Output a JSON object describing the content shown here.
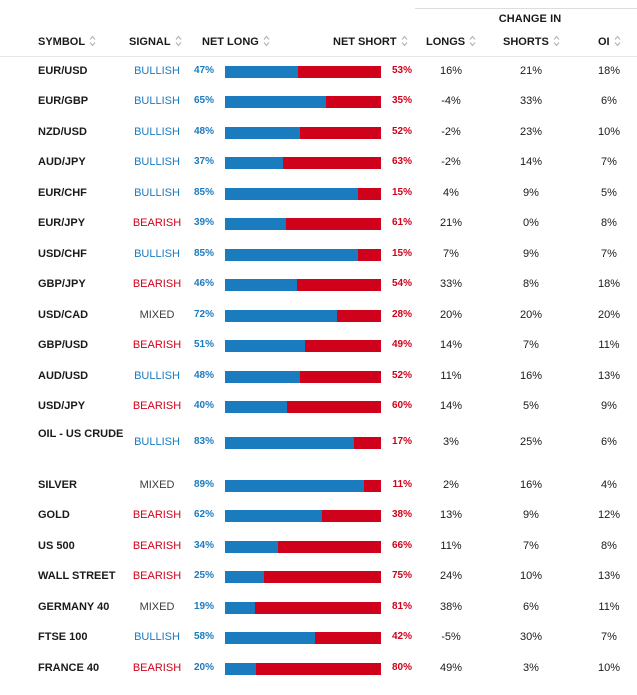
{
  "table": {
    "group_header": "CHANGE IN",
    "headers": {
      "symbol": "SYMBOL",
      "signal": "SIGNAL",
      "net_long": "NET LONG",
      "net_short": "NET SHORT",
      "longs": "LONGS",
      "shorts": "SHORTS",
      "oi": "OI"
    },
    "colors": {
      "long": "#1b7bbf",
      "short": "#d0021b",
      "bullish": "#1b7bbf",
      "bearish": "#d0021b",
      "mixed": "#3c3c3c"
    },
    "rows": [
      {
        "symbol": "EUR/USD",
        "signal": "BULLISH",
        "net_long": "47%",
        "net_short": "53%",
        "long_pct": 47,
        "longs": "16%",
        "shorts": "21%",
        "oi": "18%"
      },
      {
        "symbol": "EUR/GBP",
        "signal": "BULLISH",
        "net_long": "65%",
        "net_short": "35%",
        "long_pct": 65,
        "longs": "-4%",
        "shorts": "33%",
        "oi": "6%"
      },
      {
        "symbol": "NZD/USD",
        "signal": "BULLISH",
        "net_long": "48%",
        "net_short": "52%",
        "long_pct": 48,
        "longs": "-2%",
        "shorts": "23%",
        "oi": "10%"
      },
      {
        "symbol": "AUD/JPY",
        "signal": "BULLISH",
        "net_long": "37%",
        "net_short": "63%",
        "long_pct": 37,
        "longs": "-2%",
        "shorts": "14%",
        "oi": "7%"
      },
      {
        "symbol": "EUR/CHF",
        "signal": "BULLISH",
        "net_long": "85%",
        "net_short": "15%",
        "long_pct": 85,
        "longs": "4%",
        "shorts": "9%",
        "oi": "5%"
      },
      {
        "symbol": "EUR/JPY",
        "signal": "BEARISH",
        "net_long": "39%",
        "net_short": "61%",
        "long_pct": 39,
        "longs": "21%",
        "shorts": "0%",
        "oi": "8%"
      },
      {
        "symbol": "USD/CHF",
        "signal": "BULLISH",
        "net_long": "85%",
        "net_short": "15%",
        "long_pct": 85,
        "longs": "7%",
        "shorts": "9%",
        "oi": "7%"
      },
      {
        "symbol": "GBP/JPY",
        "signal": "BEARISH",
        "net_long": "46%",
        "net_short": "54%",
        "long_pct": 46,
        "longs": "33%",
        "shorts": "8%",
        "oi": "18%"
      },
      {
        "symbol": "USD/CAD",
        "signal": "MIXED",
        "net_long": "72%",
        "net_short": "28%",
        "long_pct": 72,
        "longs": "20%",
        "shorts": "20%",
        "oi": "20%"
      },
      {
        "symbol": "GBP/USD",
        "signal": "BEARISH",
        "net_long": "51%",
        "net_short": "49%",
        "long_pct": 51,
        "longs": "14%",
        "shorts": "7%",
        "oi": "11%"
      },
      {
        "symbol": "AUD/USD",
        "signal": "BULLISH",
        "net_long": "48%",
        "net_short": "52%",
        "long_pct": 48,
        "longs": "11%",
        "shorts": "16%",
        "oi": "13%"
      },
      {
        "symbol": "USD/JPY",
        "signal": "BEARISH",
        "net_long": "40%",
        "net_short": "60%",
        "long_pct": 40,
        "longs": "14%",
        "shorts": "5%",
        "oi": "9%"
      },
      {
        "symbol": "OIL - US CRUDE",
        "signal": "BULLISH",
        "net_long": "83%",
        "net_short": "17%",
        "long_pct": 83,
        "longs": "3%",
        "shorts": "25%",
        "oi": "6%"
      },
      {
        "symbol": "SILVER",
        "signal": "MIXED",
        "net_long": "89%",
        "net_short": "11%",
        "long_pct": 89,
        "longs": "2%",
        "shorts": "16%",
        "oi": "4%"
      },
      {
        "symbol": "GOLD",
        "signal": "BEARISH",
        "net_long": "62%",
        "net_short": "38%",
        "long_pct": 62,
        "longs": "13%",
        "shorts": "9%",
        "oi": "12%"
      },
      {
        "symbol": "US 500",
        "signal": "BEARISH",
        "net_long": "34%",
        "net_short": "66%",
        "long_pct": 34,
        "longs": "11%",
        "shorts": "7%",
        "oi": "8%"
      },
      {
        "symbol": "WALL STREET",
        "signal": "BEARISH",
        "net_long": "25%",
        "net_short": "75%",
        "long_pct": 25,
        "longs": "24%",
        "shorts": "10%",
        "oi": "13%"
      },
      {
        "symbol": "GERMANY 40",
        "signal": "MIXED",
        "net_long": "19%",
        "net_short": "81%",
        "long_pct": 19,
        "longs": "38%",
        "shorts": "6%",
        "oi": "11%"
      },
      {
        "symbol": "FTSE 100",
        "signal": "BULLISH",
        "net_long": "58%",
        "net_short": "42%",
        "long_pct": 58,
        "longs": "-5%",
        "shorts": "30%",
        "oi": "7%"
      },
      {
        "symbol": "FRANCE 40",
        "signal": "BEARISH",
        "net_long": "20%",
        "net_short": "80%",
        "long_pct": 20,
        "longs": "49%",
        "shorts": "3%",
        "oi": "10%"
      }
    ]
  }
}
